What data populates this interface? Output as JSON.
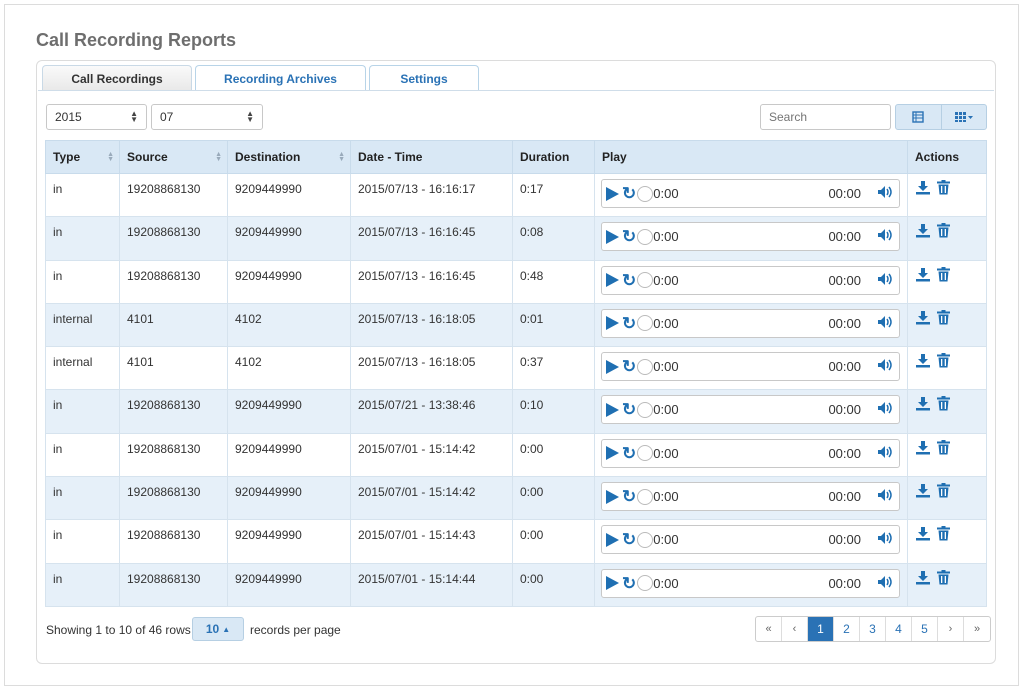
{
  "page_title": "Call Recording Reports",
  "tabs": [
    {
      "label": "Call Recordings",
      "active": true
    },
    {
      "label": "Recording Archives",
      "active": false
    },
    {
      "label": "Settings",
      "active": false
    }
  ],
  "filters": {
    "year": "2015",
    "month": "07",
    "search_placeholder": "Search"
  },
  "columns": [
    "Type",
    "Source",
    "Destination",
    "Date - Time",
    "Duration",
    "Play",
    "Actions"
  ],
  "rows": [
    {
      "type": "in",
      "source": "19208868130",
      "destination": "9209449990",
      "datetime": "2015/07/13 - 16:16:17",
      "duration": "0:17"
    },
    {
      "type": "in",
      "source": "19208868130",
      "destination": "9209449990",
      "datetime": "2015/07/13 - 16:16:45",
      "duration": "0:08"
    },
    {
      "type": "in",
      "source": "19208868130",
      "destination": "9209449990",
      "datetime": "2015/07/13 - 16:16:45",
      "duration": "0:48"
    },
    {
      "type": "internal",
      "source": "4101",
      "destination": "4102",
      "datetime": "2015/07/13 - 16:18:05",
      "duration": "0:01"
    },
    {
      "type": "internal",
      "source": "4101",
      "destination": "4102",
      "datetime": "2015/07/13 - 16:18:05",
      "duration": "0:37"
    },
    {
      "type": "in",
      "source": "19208868130",
      "destination": "9209449990",
      "datetime": "2015/07/21 - 13:38:46",
      "duration": "0:10"
    },
    {
      "type": "in",
      "source": "19208868130",
      "destination": "9209449990",
      "datetime": "2015/07/01 - 15:14:42",
      "duration": "0:00"
    },
    {
      "type": "in",
      "source": "19208868130",
      "destination": "9209449990",
      "datetime": "2015/07/01 - 15:14:42",
      "duration": "0:00"
    },
    {
      "type": "in",
      "source": "19208868130",
      "destination": "9209449990",
      "datetime": "2015/07/01 - 15:14:43",
      "duration": "0:00"
    },
    {
      "type": "in",
      "source": "19208868130",
      "destination": "9209449990",
      "datetime": "2015/07/01 - 15:14:44",
      "duration": "0:00"
    }
  ],
  "player": {
    "current": "0:00",
    "total": "00:00"
  },
  "footer": {
    "showing": "Showing 1 to 10 of 46 rows",
    "per_page_value": "10",
    "per_page_label": "records per page"
  },
  "pagination": [
    "«",
    "‹",
    "1",
    "2",
    "3",
    "4",
    "5",
    "›",
    "»"
  ],
  "active_page": "1",
  "colors": {
    "accent": "#2a72b5",
    "header_bg": "#d9e8f5",
    "row_alt": "#e6f0f9"
  }
}
